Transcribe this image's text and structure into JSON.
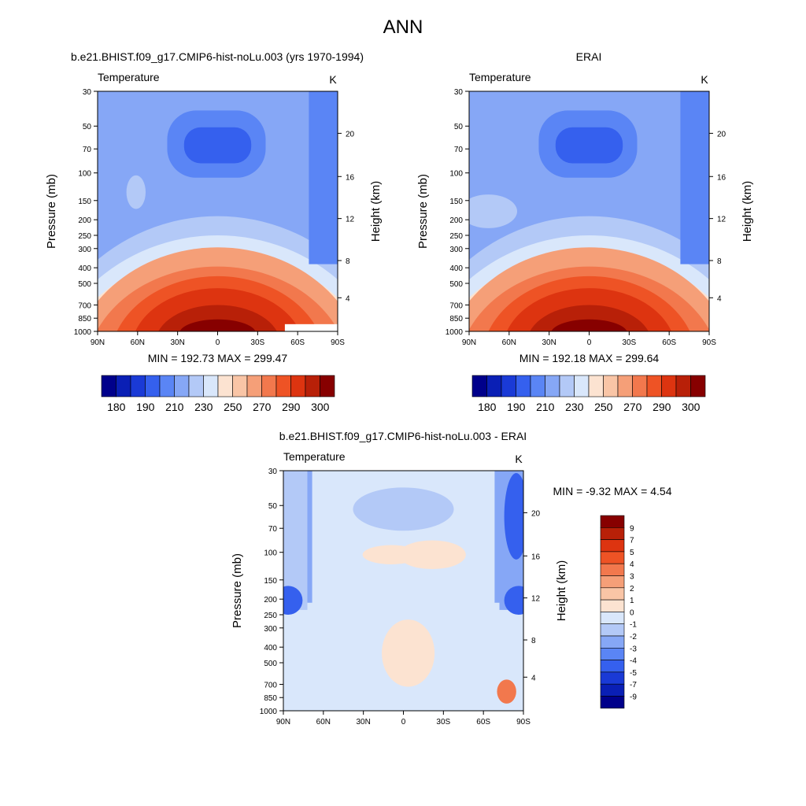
{
  "figure": {
    "title": "ANN"
  },
  "panels": [
    {
      "id": "model",
      "title": "b.e21.BHIST.f09_g17.CMIP6-hist-noLu.003 (yrs 1970-1994)",
      "left_label": "Temperature",
      "right_label": "K",
      "ylabel": "Pressure (mb)",
      "y2label": "Height (km)",
      "stats": "MIN = 192.73  MAX = 299.47"
    },
    {
      "id": "obs",
      "title": "ERAI",
      "left_label": "Temperature",
      "right_label": "K",
      "ylabel": "Pressure (mb)",
      "y2label": "Height (km)",
      "stats": "MIN = 192.18  MAX = 299.64"
    },
    {
      "id": "diff",
      "title": "b.e21.BHIST.f09_g17.CMIP6-hist-noLu.003 - ERAI",
      "left_label": "Temperature",
      "right_label": "K",
      "ylabel": "Pressure (mb)",
      "y2label": "Height (km)",
      "stats": "MIN =  -9.32  MAX =   4.54"
    }
  ],
  "colorbars": {
    "absolute": {
      "colors": [
        "#00008b",
        "#0a1fb5",
        "#1a3ad6",
        "#3560ee",
        "#5a85f5",
        "#86a7f6",
        "#b3c9f7",
        "#d9e7fb",
        "#fce3d1",
        "#f9c5a6",
        "#f59f78",
        "#f2784d",
        "#ee5325",
        "#dd3410",
        "#b82008",
        "#870000"
      ],
      "labels": [
        "180",
        "190",
        "210",
        "230",
        "250",
        "270",
        "290",
        "300"
      ]
    },
    "difference": {
      "colors": [
        "#00008b",
        "#0a1fb5",
        "#1a3ad6",
        "#3560ee",
        "#5a85f5",
        "#86a7f6",
        "#b3c9f7",
        "#d9e7fb",
        "#fce3d1",
        "#f9c5a6",
        "#f59f78",
        "#f2784d",
        "#ee5325",
        "#dd3410",
        "#b82008",
        "#870000"
      ],
      "labels": [
        "9",
        "7",
        "5",
        "4",
        "3",
        "2",
        "1",
        "0",
        "-1",
        "-2",
        "-3",
        "-4",
        "-5",
        "-7",
        "-9"
      ]
    }
  },
  "chart_data": [
    {
      "type": "heatmap",
      "title": "b.e21.BHIST.f09_g17.CMIP6-hist-noLu.003 (yrs 1970-1994)",
      "variable": "Temperature",
      "units": "K",
      "xlabel": "",
      "ylabel": "Pressure (mb)",
      "y2label": "Height (km)",
      "x_ticks": [
        "90N",
        "60N",
        "30N",
        "0",
        "30S",
        "60S",
        "90S"
      ],
      "y_ticks": [
        30,
        50,
        70,
        100,
        150,
        200,
        250,
        300,
        400,
        500,
        700,
        850,
        1000
      ],
      "y2_ticks": [
        4,
        8,
        12,
        16,
        20
      ],
      "ylim": [
        1000,
        30
      ],
      "y_scale": "log",
      "min": 192.73,
      "max": 299.47
    },
    {
      "type": "heatmap",
      "title": "ERAI",
      "variable": "Temperature",
      "units": "K",
      "xlabel": "",
      "ylabel": "Pressure (mb)",
      "y2label": "Height (km)",
      "x_ticks": [
        "90N",
        "60N",
        "30N",
        "0",
        "30S",
        "60S",
        "90S"
      ],
      "y_ticks": [
        30,
        50,
        70,
        100,
        150,
        200,
        250,
        300,
        400,
        500,
        700,
        850,
        1000
      ],
      "y2_ticks": [
        4,
        8,
        12,
        16,
        20
      ],
      "ylim": [
        1000,
        30
      ],
      "y_scale": "log",
      "min": 192.18,
      "max": 299.64
    },
    {
      "type": "heatmap",
      "title": "b.e21.BHIST.f09_g17.CMIP6-hist-noLu.003 - ERAI",
      "variable": "Temperature",
      "units": "K",
      "xlabel": "",
      "ylabel": "Pressure (mb)",
      "y2label": "Height (km)",
      "x_ticks": [
        "90N",
        "60N",
        "30N",
        "0",
        "30S",
        "60S",
        "90S"
      ],
      "y_ticks": [
        30,
        50,
        70,
        100,
        150,
        200,
        250,
        300,
        400,
        500,
        700,
        850,
        1000
      ],
      "y2_ticks": [
        4,
        8,
        12,
        16,
        20
      ],
      "ylim": [
        1000,
        30
      ],
      "y_scale": "log",
      "min": -9.32,
      "max": 4.54
    }
  ]
}
